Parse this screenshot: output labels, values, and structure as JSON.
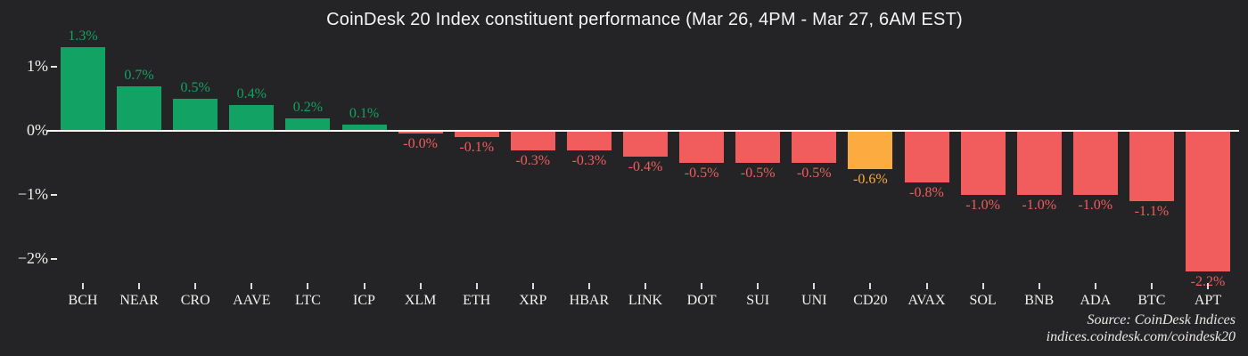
{
  "title": "CoinDesk 20 Index constituent performance (Mar 26, 4PM - Mar 27, 6AM EST)",
  "source": {
    "line1": "Source: CoinDesk Indices",
    "line2": "indices.coindesk.com/coindesk20"
  },
  "colors": {
    "background": "#242426",
    "positive": "#12a263",
    "negative": "#f15d5d",
    "highlight": "#fbab40",
    "axis_line": "#faf8f4",
    "tick_text": "#f3f1ed"
  },
  "chart_data": {
    "type": "bar",
    "title": "CoinDesk 20 Index constituent performance (Mar 26, 4PM - Mar 27, 6AM EST)",
    "categories": [
      "BCH",
      "NEAR",
      "CRO",
      "AAVE",
      "LTC",
      "ICP",
      "XLM",
      "ETH",
      "XRP",
      "HBAR",
      "LINK",
      "DOT",
      "SUI",
      "UNI",
      "CD20",
      "AVAX",
      "SOL",
      "BNB",
      "ADA",
      "BTC",
      "APT"
    ],
    "values": [
      1.3,
      0.7,
      0.5,
      0.4,
      0.2,
      0.1,
      -0.0,
      -0.1,
      -0.3,
      -0.3,
      -0.4,
      -0.5,
      -0.5,
      -0.5,
      -0.6,
      -0.8,
      -1.0,
      -1.0,
      -1.0,
      -1.1,
      -2.2
    ],
    "labels": [
      "1.3%",
      "0.7%",
      "0.5%",
      "0.4%",
      "0.2%",
      "0.1%",
      "-0.0%",
      "-0.1%",
      "-0.3%",
      "-0.3%",
      "-0.4%",
      "-0.5%",
      "-0.5%",
      "-0.5%",
      "-0.6%",
      "-0.8%",
      "-1.0%",
      "-1.0%",
      "-1.0%",
      "-1.1%",
      "-2.2%"
    ],
    "highlight_category": "CD20",
    "y_ticks": [
      "1%",
      "0%",
      "−1%",
      "−2%"
    ],
    "y_tick_values": [
      1,
      0,
      -1,
      -2
    ],
    "ylim": [
      -2.5,
      1.5
    ],
    "xlabel": "",
    "ylabel": "",
    "grid": false,
    "legend": false
  }
}
